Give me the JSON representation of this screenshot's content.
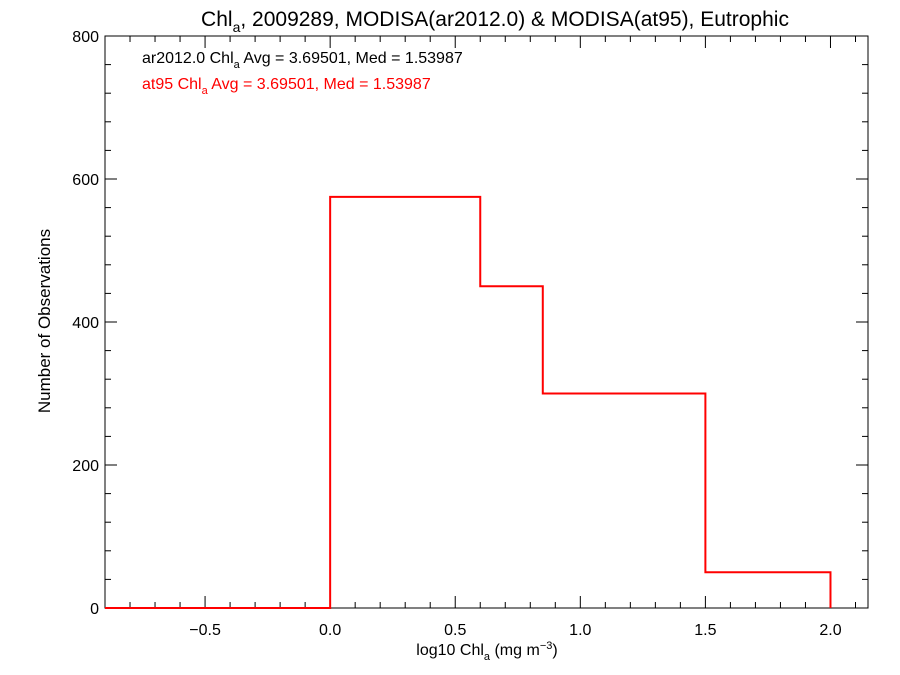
{
  "chart_data": {
    "type": "line",
    "title": {
      "pre": "Chl",
      "sub": "a",
      "post": ", 2009289, MODISA(ar2012.0) & MODISA(at95), Eutrophic"
    },
    "xlabel": {
      "pre": "log10 Chl",
      "sub": "a",
      "mid": " (mg m",
      "sup": "−3",
      "post": ")"
    },
    "ylabel": "Number of Observations",
    "xlim": [
      -0.9,
      2.15
    ],
    "ylim": [
      0,
      800
    ],
    "xticks": [
      {
        "value": -0.5,
        "label": "−0.5"
      },
      {
        "value": 0.0,
        "label": "0.0"
      },
      {
        "value": 0.5,
        "label": "0.5"
      },
      {
        "value": 1.0,
        "label": "1.0"
      },
      {
        "value": 1.5,
        "label": "1.5"
      },
      {
        "value": 2.0,
        "label": "2.0"
      }
    ],
    "yticks": [
      {
        "value": 0,
        "label": "0"
      },
      {
        "value": 200,
        "label": "200"
      },
      {
        "value": 400,
        "label": "400"
      },
      {
        "value": 600,
        "label": "600"
      },
      {
        "value": 800,
        "label": "800"
      }
    ],
    "grid": false,
    "annotations": [
      {
        "pre": "ar2012.0 Chl",
        "sub": "a",
        "post": " Avg = 3.69501, Med = 1.53987",
        "color": "#000000"
      },
      {
        "pre": "at95 Chl",
        "sub": "a",
        "post": " Avg = 3.69501, Med = 1.53987",
        "color": "#ff0000"
      }
    ],
    "series": [
      {
        "color": "#ff0000",
        "style": "histogram-step",
        "x": [
          -0.9,
          0.0,
          0.6,
          0.85,
          1.5,
          2.0
        ],
        "y": [
          0,
          575,
          450,
          300,
          50,
          0
        ]
      }
    ]
  }
}
